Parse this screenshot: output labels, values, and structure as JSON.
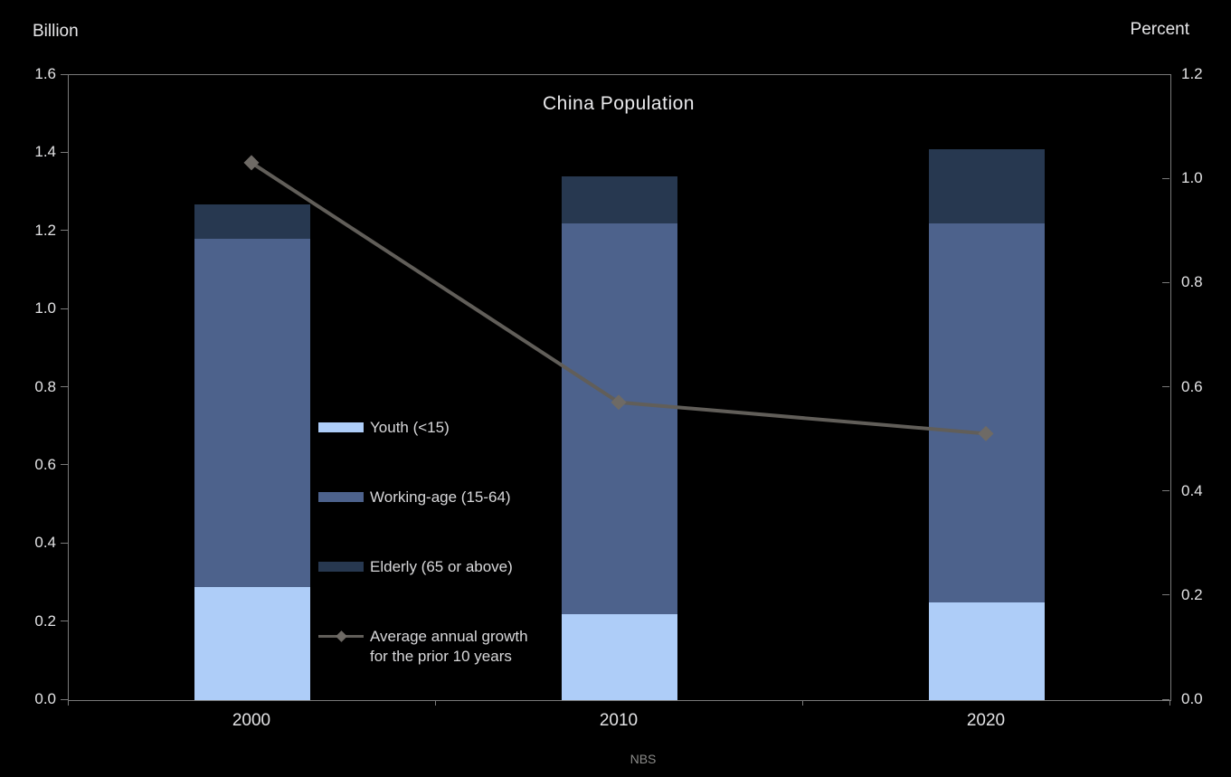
{
  "chart_data": {
    "type": "bar",
    "stacked": true,
    "title": "China Population",
    "source": "NBS",
    "categories": [
      "2000",
      "2010",
      "2020"
    ],
    "series": [
      {
        "name": "Youth (<15)",
        "color": "#aecdf8",
        "values": [
          0.29,
          0.22,
          0.25
        ]
      },
      {
        "name": "Working-age (15-64)",
        "color": "#4d628c",
        "values": [
          0.89,
          1.0,
          0.97
        ]
      },
      {
        "name": "Elderly (65 or above)",
        "color": "#273850",
        "values": [
          0.09,
          0.12,
          0.19
        ]
      }
    ],
    "line_series": {
      "name": "Average annual growth\nfor the prior 10 years",
      "axis": "right",
      "color": "#615e59",
      "marker_color": "#6e6a65",
      "values": [
        1.03,
        0.57,
        0.51
      ]
    },
    "left_axis": {
      "label": "Billion",
      "min": 0.0,
      "max": 1.6,
      "tick_labels": [
        "0.0",
        "0.2",
        "0.4",
        "0.6",
        "0.8",
        "1.0",
        "1.2",
        "1.4",
        "1.6"
      ]
    },
    "right_axis": {
      "label": "Percent",
      "min": 0.0,
      "max": 1.2,
      "tick_labels": [
        "0.0",
        "0.2",
        "0.4",
        "0.6",
        "0.8",
        "1.0",
        "1.2"
      ]
    },
    "legend_position": "inside-center-left",
    "grid": false,
    "background": "#000000"
  }
}
